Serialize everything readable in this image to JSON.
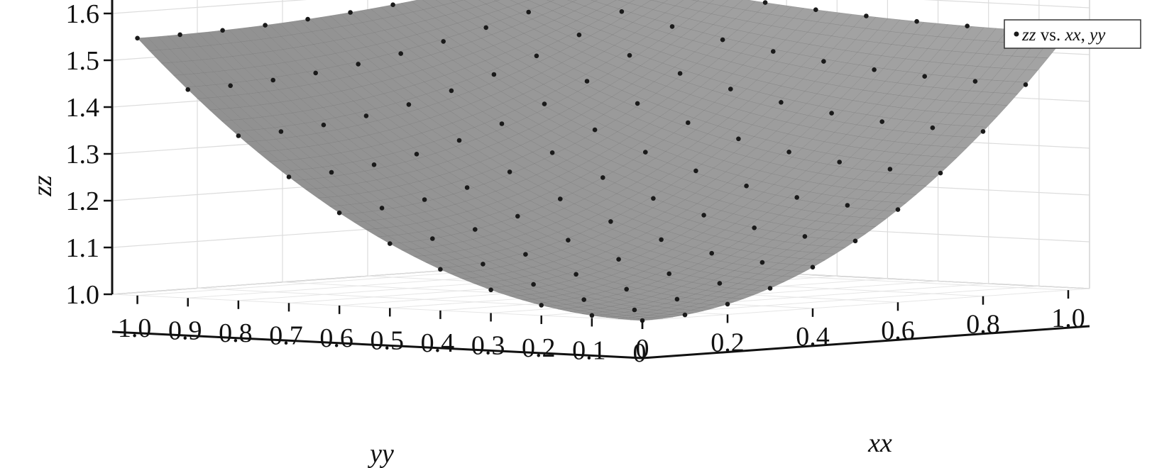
{
  "chart_data": {
    "type": "surface3d",
    "title": "",
    "xlabel": "xx",
    "ylabel": "yy",
    "zlabel": "zz",
    "xlim": [
      0,
      1.05
    ],
    "ylim": [
      0,
      1.05
    ],
    "zlim": [
      0.97,
      1.65
    ],
    "x_ticks": [
      "0",
      "0.2",
      "0.4",
      "0.6",
      "0.8",
      "1.0"
    ],
    "y_ticks": [
      "0",
      "0.1",
      "0.2",
      "0.3",
      "0.4",
      "0.5",
      "0.6",
      "0.7",
      "0.8",
      "0.9",
      "1.0"
    ],
    "z_ticks": [
      "1.0",
      "1.1",
      "1.2",
      "1.3",
      "1.4",
      "1.5",
      "1.6"
    ],
    "grid": true,
    "legend_position": "top-right",
    "surface_color": "#a4a4a4",
    "marker_color": "#1a1a1a",
    "series": [
      {
        "name": "zz vs. xx, yy",
        "name_parts": {
          "a": "zz",
          "b": " vs. ",
          "c": "xx",
          "d": ", ",
          "e": "yy"
        },
        "type": "scatter",
        "x_values": [
          0,
          0.1,
          0.2,
          0.3,
          0.4,
          0.5,
          0.6,
          0.7,
          0.8,
          0.9,
          1.0
        ],
        "y_values": [
          0,
          0.1,
          0.2,
          0.3,
          0.4,
          0.5,
          0.6,
          0.7,
          0.8,
          0.9,
          1.0
        ],
        "z_model": "paraboloid-saddle",
        "z_min": 1.0,
        "z_corner_x": 1.55,
        "z_corner_y": 1.55,
        "z_corner_xy": 1.64
      }
    ]
  }
}
